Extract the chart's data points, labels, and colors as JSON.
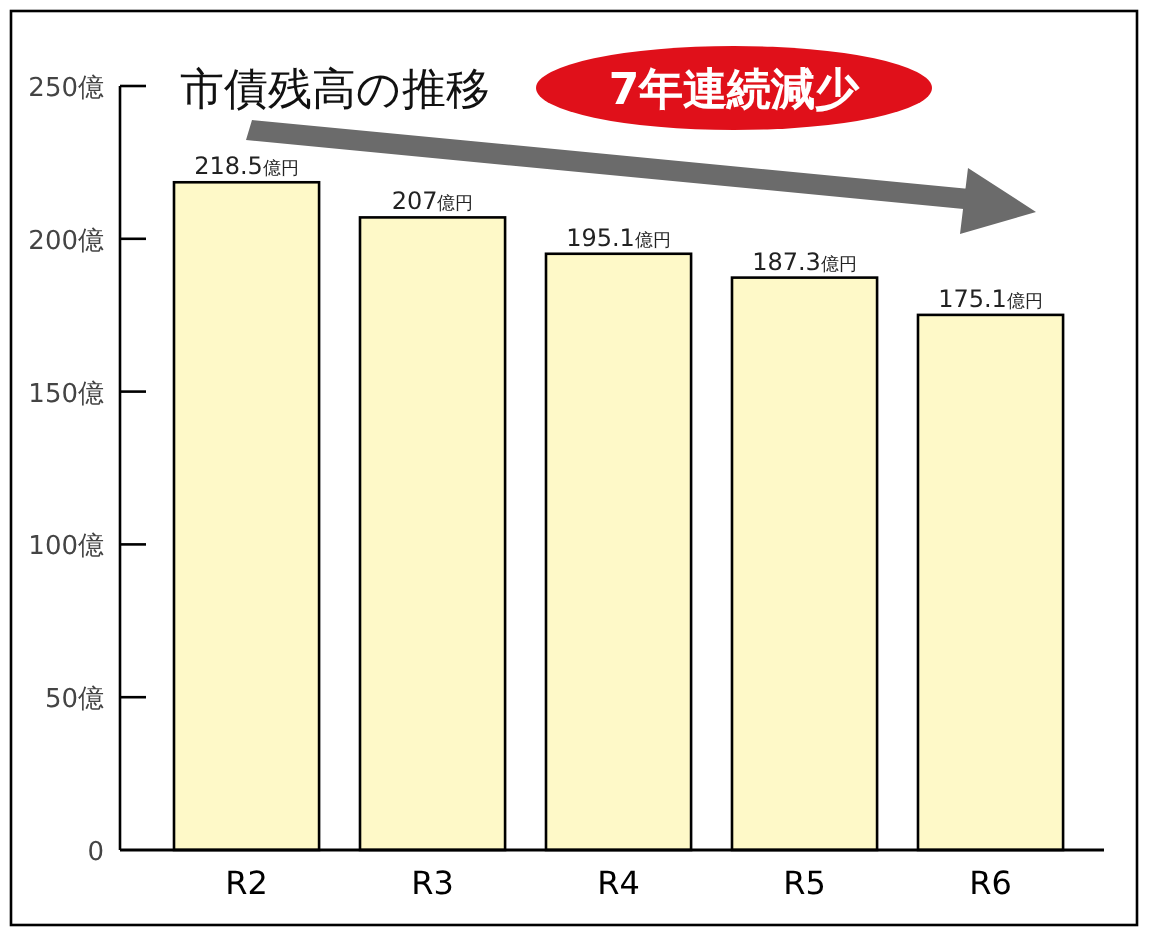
{
  "chart_data": {
    "type": "bar",
    "title": "市債残高の推移",
    "subtitle": "7年連続減少",
    "categories": [
      "R2",
      "R3",
      "R4",
      "R5",
      "R6"
    ],
    "values": [
      218.5,
      207,
      195.1,
      187.3,
      175.1
    ],
    "value_labels": [
      "218.5億円",
      "207億円",
      "195.1億円",
      "187.3億円",
      "175.1億円"
    ],
    "color": "#fef9c8",
    "ylim": [
      0,
      250
    ],
    "yticks": [
      0,
      {
        "value": 50,
        "label": "50億"
      },
      {
        "value": 100,
        "label": "100億"
      },
      {
        "value": 150,
        "label": "150億"
      },
      {
        "value": 200,
        "label": "200億"
      },
      {
        "value": 250,
        "label": "250億"
      }
    ],
    "grid": false
  }
}
